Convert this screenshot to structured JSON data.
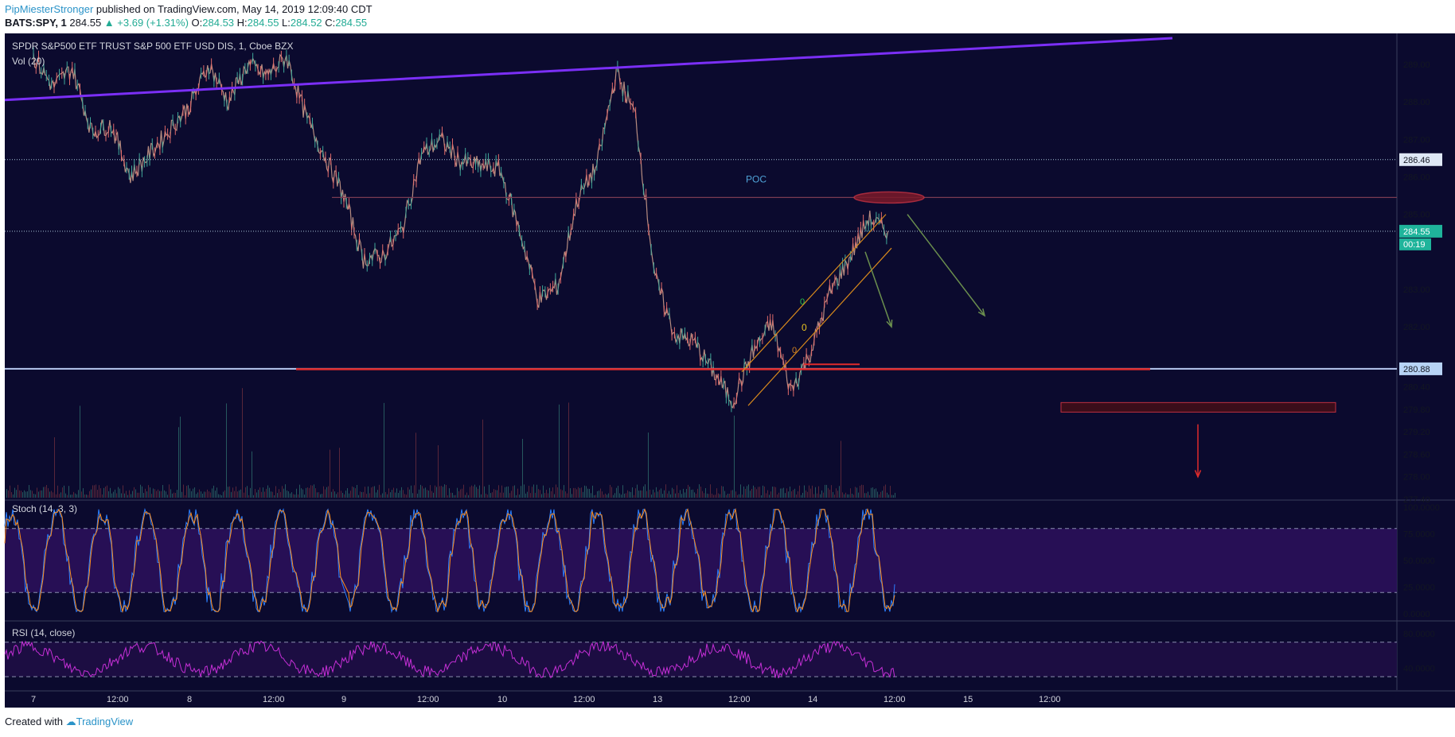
{
  "header": {
    "author": "PipMiesterStronger",
    "published": "published on TradingView.com, May 14, 2019 12:09:40 CDT",
    "symbol": "BATS:SPY, 1",
    "last": "284.55",
    "change": "▲ +3.69 (+1.31%)",
    "o_label": "O:",
    "o": "284.53",
    "h_label": "H:",
    "h": "284.55",
    "l_label": "L:",
    "l": "284.52",
    "c_label": "C:",
    "c": "284.55"
  },
  "footer": {
    "created": "Created with",
    "brand": "TradingView"
  },
  "colors": {
    "background": "#0b0a2e",
    "grid": "#2a2d4a",
    "trendline": "#7b2ff7",
    "support": "#e02b2b",
    "poc": "#7a3b52",
    "channel": "#d98a1c",
    "arrow": "#6b8f4e",
    "stoch_k": "#2a7fff",
    "stoch_d": "#ff8c1a",
    "rsi": "#c52fd6",
    "price_tag_bg": "#1fb49b"
  },
  "chart_data": [
    {
      "type": "candlestick",
      "title": "SPDR S&P500 ETF TRUST S&P 500 ETF USD DIS, 1, Cboe BZX",
      "volume_label": "Vol (20)",
      "x_tick_labels": [
        "7",
        "12:00",
        "8",
        "12:00",
        "9",
        "12:00",
        "10",
        "12:00",
        "13",
        "12:00",
        "14",
        "12:00",
        "15",
        "12:00"
      ],
      "y_tick_labels": [
        "289.00",
        "288.00",
        "287.00",
        "286.00",
        "285.00",
        "283.00",
        "282.00",
        "280.40",
        "279.80",
        "279.20",
        "278.60",
        "278.00",
        "277.40"
      ],
      "ylim": [
        277.4,
        289.7
      ],
      "price_path": [
        [
          "7",
          289.2
        ],
        [
          "7 03:00",
          288.4
        ],
        [
          "7 06:00",
          288.9
        ],
        [
          "7 09:00",
          287.2
        ],
        [
          "7 12:00",
          287.4
        ],
        [
          "7 15:00",
          286.0
        ],
        [
          "8",
          287.9
        ],
        [
          "8 03:00",
          289.0
        ],
        [
          "8 06:00",
          288.0
        ],
        [
          "8 09:00",
          289.0
        ],
        [
          "8 12:00",
          288.7
        ],
        [
          "8 15:00",
          289.2
        ],
        [
          "8 18:00",
          287.6
        ],
        [
          "9",
          285.5
        ],
        [
          "9 03:00",
          283.8
        ],
        [
          "9 06:00",
          283.9
        ],
        [
          "9 09:00",
          284.6
        ],
        [
          "9 12:00",
          286.6
        ],
        [
          "9 15:00",
          287.0
        ],
        [
          "9 18:00",
          286.4
        ],
        [
          "10",
          286.2
        ],
        [
          "10 03:00",
          284.6
        ],
        [
          "10 06:00",
          282.7
        ],
        [
          "10 09:00",
          283.1
        ],
        [
          "10 12:00",
          285.4
        ],
        [
          "10 15:00",
          286.3
        ],
        [
          "10 18:00",
          288.8
        ],
        [
          "10 21:00",
          287.6
        ],
        [
          "13",
          283.3
        ],
        [
          "13 03:00",
          281.8
        ],
        [
          "13 06:00",
          281.6
        ],
        [
          "13 09:00",
          280.8
        ],
        [
          "13 12:00",
          280.0
        ],
        [
          "13 15:00",
          281.3
        ],
        [
          "13 18:00",
          282.1
        ],
        [
          "13 21:00",
          280.3
        ],
        [
          "14",
          281.3
        ],
        [
          "14 03:00",
          282.9
        ],
        [
          "14 06:00",
          283.8
        ],
        [
          "14 09:00",
          284.9
        ],
        [
          "14 12:00",
          284.55
        ]
      ],
      "horizontal_levels": [
        {
          "label": "286.46",
          "style": "dotted"
        },
        {
          "label": "284.55",
          "style": "dotted"
        },
        {
          "label": "280.88",
          "style": "solid"
        }
      ],
      "price_tag": "284.55",
      "countdown": "00:19",
      "annotations": [
        "POC"
      ]
    },
    {
      "type": "line",
      "title": "Stoch (14, 3, 3)",
      "y_tick_labels": [
        "100.0000",
        "75.0000",
        "50.0000",
        "25.0000",
        "0.0000"
      ],
      "ylim": [
        0,
        100
      ],
      "bands": [
        20,
        80
      ]
    },
    {
      "type": "line",
      "title": "RSI (14, close)",
      "y_tick_labels": [
        "80.0000",
        "40.0000"
      ],
      "bands": [
        30,
        70
      ]
    }
  ]
}
